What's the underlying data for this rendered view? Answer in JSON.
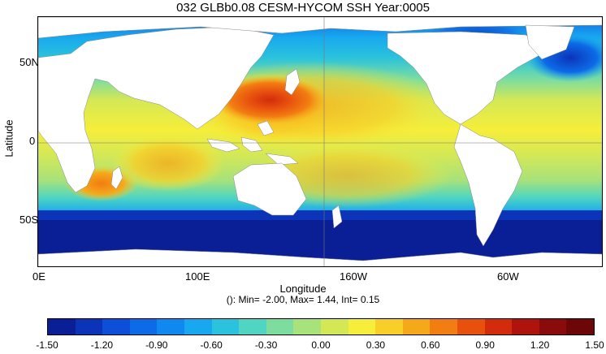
{
  "title": "032 GLBb0.08 CESM-HYCOM SSH Year:0005",
  "axes": {
    "ylabel": "Latitude",
    "xlabel": "Longitude",
    "yticks": [
      "50N",
      "0",
      "50S"
    ],
    "xticks": [
      "0E",
      "100E",
      "160W",
      "60W"
    ]
  },
  "stats_text": "(): Min= -2.00, Max= 1.44, Int= 0.15",
  "colorbar": {
    "tick_labels": [
      "-1.50",
      "-1.20",
      "-0.90",
      "-0.60",
      "-0.30",
      "0.00",
      "0.30",
      "0.60",
      "0.90",
      "1.20",
      "1.50"
    ],
    "colors": [
      "#0a1f96",
      "#0b34b9",
      "#0d4fd8",
      "#0d6be8",
      "#0f89f0",
      "#18a8ef",
      "#2ac2dc",
      "#4fd5c2",
      "#7ddd9f",
      "#a8e27a",
      "#d4e856",
      "#f6ee3a",
      "#f7cf28",
      "#f5a91a",
      "#f27d12",
      "#e8500e",
      "#d22c0d",
      "#ae140c",
      "#8a0b0b",
      "#6d0707"
    ]
  },
  "chart_data": {
    "type": "heatmap",
    "title": "032 GLBb0.08 CESM-HYCOM SSH Year:0005",
    "xlabel": "Longitude",
    "ylabel": "Latitude",
    "x_tick_labels": [
      "0E",
      "100E",
      "160W",
      "60W"
    ],
    "y_tick_labels": [
      "50N",
      "0",
      "50S"
    ],
    "colorbar_range": [
      -1.5,
      1.5
    ],
    "contour_interval": 0.15,
    "min": -2.0,
    "max": 1.44
  }
}
